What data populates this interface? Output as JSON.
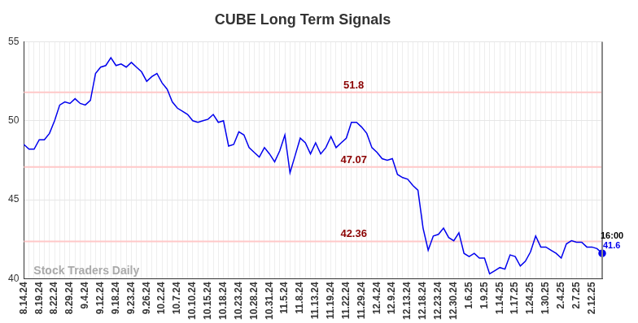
{
  "chart_data": {
    "type": "line",
    "title": "CUBE Long Term Signals",
    "categories": [
      "8.14.24",
      null,
      null,
      "8.19.24",
      null,
      null,
      "8.22.24",
      null,
      null,
      "8.29.24",
      null,
      null,
      "9.4.24",
      null,
      null,
      "9.12.24",
      null,
      null,
      "9.18.24",
      null,
      null,
      "9.23.24",
      null,
      null,
      "9.26.24",
      null,
      null,
      "10.2.24",
      null,
      null,
      "10.7.24",
      null,
      null,
      "10.10.24",
      null,
      null,
      "10.15.24",
      null,
      null,
      "10.18.24",
      null,
      null,
      "10.23.24",
      null,
      null,
      "10.28.24",
      null,
      null,
      "10.31.24",
      null,
      null,
      "11.5.24",
      null,
      null,
      "11.8.24",
      null,
      null,
      "11.13.24",
      null,
      null,
      "11.19.24",
      null,
      null,
      "11.22.24",
      null,
      null,
      "11.29.24",
      null,
      null,
      "12.4.24",
      null,
      null,
      "12.9.24",
      null,
      null,
      "12.13.24",
      null,
      null,
      "12.18.24",
      null,
      null,
      "12.23.24",
      null,
      null,
      "12.30.24",
      null,
      null,
      "1.6.25",
      null,
      null,
      "1.9.25",
      null,
      null,
      "1.14.25",
      null,
      null,
      "1.17.25",
      null,
      null,
      "1.24.25",
      null,
      null,
      "1.30.25",
      null,
      null,
      "2.4.25",
      null,
      null,
      "2.7.25",
      null,
      null,
      "2.12.25",
      null,
      null
    ],
    "values": [
      48.5,
      48.2,
      48.2,
      48.8,
      48.8,
      49.2,
      50.0,
      51.0,
      51.2,
      51.1,
      51.4,
      51.1,
      51.0,
      51.3,
      53.0,
      53.4,
      53.5,
      54.0,
      53.5,
      53.6,
      53.4,
      53.7,
      53.4,
      53.1,
      52.5,
      52.8,
      53.0,
      52.4,
      52.0,
      51.2,
      50.8,
      50.6,
      50.4,
      50.0,
      49.9,
      50.0,
      50.1,
      50.4,
      49.9,
      50.0,
      48.4,
      48.5,
      49.3,
      49.1,
      48.3,
      48.0,
      47.7,
      48.3,
      47.9,
      47.4,
      48.1,
      49.1,
      46.7,
      47.8,
      48.9,
      48.6,
      47.9,
      48.6,
      47.9,
      48.3,
      49.0,
      48.3,
      48.6,
      48.9,
      49.9,
      49.9,
      49.6,
      49.2,
      48.3,
      48.0,
      47.6,
      47.5,
      47.6,
      46.6,
      46.4,
      46.3,
      45.9,
      45.6,
      43.2,
      41.8,
      42.7,
      42.8,
      43.2,
      42.6,
      42.4,
      42.9,
      41.6,
      41.4,
      41.6,
      41.3,
      41.3,
      40.3,
      40.5,
      40.7,
      40.6,
      41.5,
      41.4,
      40.8,
      41.1,
      41.7,
      42.7,
      42.0,
      42.0,
      41.8,
      41.6,
      41.3,
      42.2,
      42.4,
      42.3,
      42.3,
      42.0,
      42.0,
      41.9,
      41.6
    ],
    "color": "#0000ee",
    "ylim": [
      40,
      55
    ],
    "yticks": [
      40,
      45,
      50,
      55
    ],
    "grid": true,
    "levels": [
      51.8,
      47.07,
      42.36
    ],
    "annotations": {
      "watermark": "Stock Traders Daily",
      "last_time": "16:00"
    }
  }
}
